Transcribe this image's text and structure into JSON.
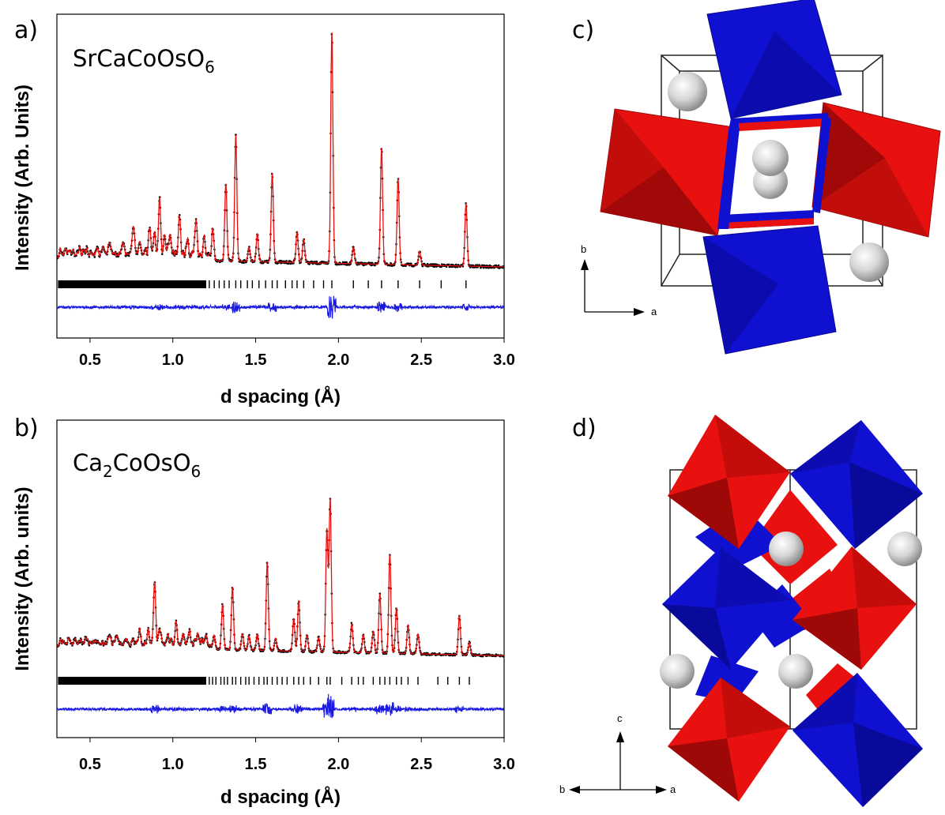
{
  "panels": {
    "a": "a)",
    "b": "b)",
    "c": "c)",
    "d": "d)"
  },
  "compounds": {
    "a": {
      "base": "SrCaCoOsO",
      "sub": "6"
    },
    "b": {
      "parts": [
        {
          "t": "Ca",
          "s": "2"
        },
        {
          "t": "CoOsO",
          "s": "6"
        }
      ]
    }
  },
  "structure_c": {
    "axis_up": "b",
    "axis_right": "a"
  },
  "structure_d": {
    "axis_up": "c",
    "axis_left": "b",
    "axis_right": "a"
  },
  "colors": {
    "observed": "#000000",
    "calculated": "#e8110f",
    "difference": "#1a1adf",
    "reflections": "#000000",
    "octahedra_1": "#e8110f",
    "octahedra_2": "#1010d0",
    "atoms": "#dcdcdc"
  },
  "chart_data": [
    {
      "type": "line",
      "title": "",
      "xlabel": "d spacing (Å)",
      "ylabel": "Intensity (Arb. Units)",
      "xlim": [
        0.3,
        3.0
      ],
      "xticks": [
        "0.5",
        "1.0",
        "1.5",
        "2.0",
        "2.5",
        "3.0"
      ],
      "baseline": 0.12,
      "background_slope": -0.015,
      "peaks": [
        {
          "d": 0.58,
          "h": 0.04
        },
        {
          "d": 0.62,
          "h": 0.05
        },
        {
          "d": 0.7,
          "h": 0.04
        },
        {
          "d": 0.76,
          "h": 0.11
        },
        {
          "d": 0.8,
          "h": 0.07
        },
        {
          "d": 0.86,
          "h": 0.1
        },
        {
          "d": 0.89,
          "h": 0.11
        },
        {
          "d": 0.92,
          "h": 0.24
        },
        {
          "d": 0.95,
          "h": 0.06
        },
        {
          "d": 0.98,
          "h": 0.07
        },
        {
          "d": 1.04,
          "h": 0.16
        },
        {
          "d": 1.09,
          "h": 0.06
        },
        {
          "d": 1.14,
          "h": 0.14
        },
        {
          "d": 1.19,
          "h": 0.07
        },
        {
          "d": 1.24,
          "h": 0.09
        },
        {
          "d": 1.32,
          "h": 0.33
        },
        {
          "d": 1.38,
          "h": 0.54
        },
        {
          "d": 1.46,
          "h": 0.06
        },
        {
          "d": 1.51,
          "h": 0.12
        },
        {
          "d": 1.6,
          "h": 0.38
        },
        {
          "d": 1.75,
          "h": 0.13
        },
        {
          "d": 1.79,
          "h": 0.1
        },
        {
          "d": 1.96,
          "h": 0.99
        },
        {
          "d": 2.09,
          "h": 0.07
        },
        {
          "d": 2.26,
          "h": 0.5
        },
        {
          "d": 2.36,
          "h": 0.37
        },
        {
          "d": 2.49,
          "h": 0.06
        },
        {
          "d": 2.77,
          "h": 0.27
        }
      ],
      "tick_positions_dense_below": 1.2,
      "tick_positions": [
        1.22,
        1.25,
        1.28,
        1.31,
        1.34,
        1.38,
        1.41,
        1.45,
        1.48,
        1.52,
        1.56,
        1.6,
        1.63,
        1.68,
        1.72,
        1.75,
        1.79,
        1.85,
        1.91,
        1.96,
        2.09,
        2.18,
        2.26,
        2.36,
        2.49,
        2.62,
        2.77
      ]
    },
    {
      "type": "line",
      "title": "",
      "xlabel": "d spacing (Å)",
      "ylabel": "Intensity (Arb. units)",
      "xlim": [
        0.3,
        3.0
      ],
      "xticks": [
        "0.5",
        "1.0",
        "1.5",
        "2.0",
        "2.5",
        "3.0"
      ],
      "baseline": 0.13,
      "background_slope": -0.02,
      "peaks": [
        {
          "d": 0.62,
          "h": 0.05
        },
        {
          "d": 0.66,
          "h": 0.04
        },
        {
          "d": 0.72,
          "h": 0.04
        },
        {
          "d": 0.8,
          "h": 0.07
        },
        {
          "d": 0.85,
          "h": 0.07
        },
        {
          "d": 0.89,
          "h": 0.36
        },
        {
          "d": 0.92,
          "h": 0.1
        },
        {
          "d": 0.97,
          "h": 0.06
        },
        {
          "d": 1.02,
          "h": 0.11
        },
        {
          "d": 1.06,
          "h": 0.06
        },
        {
          "d": 1.1,
          "h": 0.08
        },
        {
          "d": 1.15,
          "h": 0.06
        },
        {
          "d": 1.2,
          "h": 0.07
        },
        {
          "d": 1.25,
          "h": 0.06
        },
        {
          "d": 1.3,
          "h": 0.25
        },
        {
          "d": 1.36,
          "h": 0.35
        },
        {
          "d": 1.42,
          "h": 0.09
        },
        {
          "d": 1.46,
          "h": 0.08
        },
        {
          "d": 1.51,
          "h": 0.09
        },
        {
          "d": 1.57,
          "h": 0.49
        },
        {
          "d": 1.62,
          "h": 0.07
        },
        {
          "d": 1.73,
          "h": 0.18
        },
        {
          "d": 1.76,
          "h": 0.28
        },
        {
          "d": 1.81,
          "h": 0.09
        },
        {
          "d": 1.88,
          "h": 0.08
        },
        {
          "d": 1.93,
          "h": 0.68
        },
        {
          "d": 1.95,
          "h": 0.85
        },
        {
          "d": 2.08,
          "h": 0.16
        },
        {
          "d": 2.15,
          "h": 0.1
        },
        {
          "d": 2.21,
          "h": 0.12
        },
        {
          "d": 2.25,
          "h": 0.33
        },
        {
          "d": 2.31,
          "h": 0.55
        },
        {
          "d": 2.35,
          "h": 0.25
        },
        {
          "d": 2.42,
          "h": 0.16
        },
        {
          "d": 2.48,
          "h": 0.11
        },
        {
          "d": 2.73,
          "h": 0.22
        },
        {
          "d": 2.79,
          "h": 0.07
        }
      ],
      "tick_positions_dense_below": 1.2,
      "tick_positions": [
        1.22,
        1.24,
        1.26,
        1.29,
        1.31,
        1.33,
        1.36,
        1.38,
        1.41,
        1.44,
        1.46,
        1.49,
        1.52,
        1.55,
        1.57,
        1.6,
        1.63,
        1.66,
        1.69,
        1.73,
        1.76,
        1.79,
        1.83,
        1.88,
        1.93,
        1.95,
        2.02,
        2.08,
        2.12,
        2.15,
        2.21,
        2.25,
        2.28,
        2.31,
        2.35,
        2.38,
        2.42,
        2.48,
        2.6,
        2.66,
        2.73,
        2.79
      ]
    }
  ]
}
